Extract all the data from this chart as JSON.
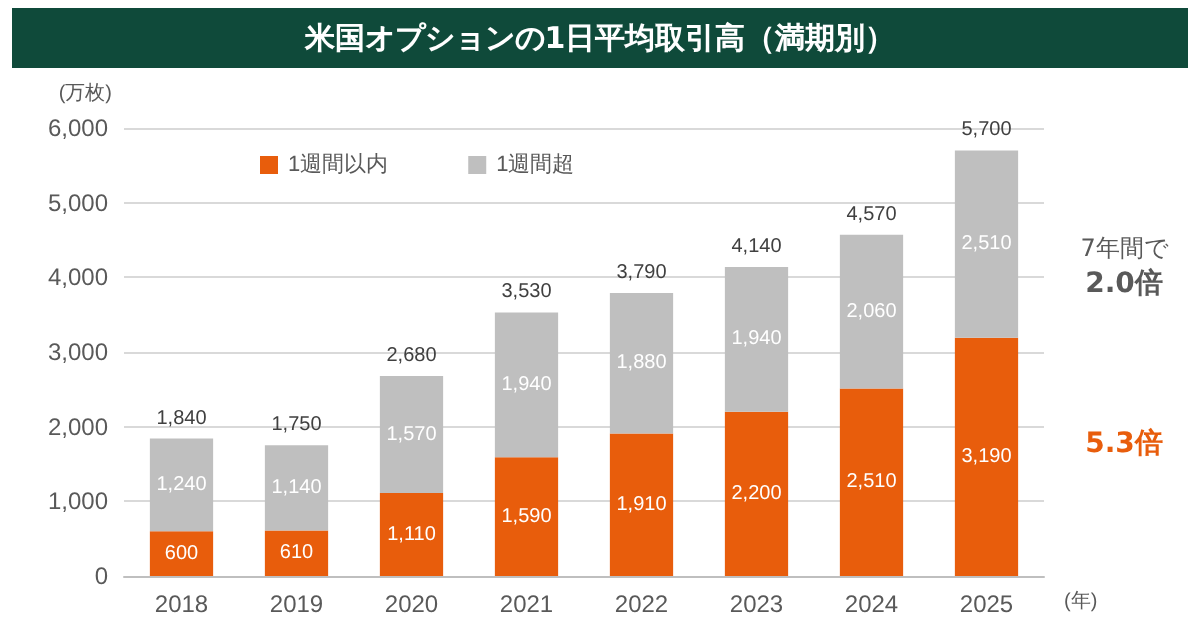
{
  "chart_data": {
    "type": "bar",
    "title": "米国オプションの1日平均取引高（満期別）",
    "ylabel": "(万枚)",
    "xlabel": "(年)",
    "categories": [
      "2018",
      "2019",
      "2020",
      "2021",
      "2022",
      "2023",
      "2024",
      "2025"
    ],
    "stacked": true,
    "series": [
      {
        "name": "1週間以内",
        "color": "#e85d0c",
        "values": [
          600,
          610,
          1110,
          1590,
          1910,
          2200,
          2510,
          3190
        ],
        "value_labels": [
          "600",
          "610",
          "1,110",
          "1,590",
          "1,910",
          "2,200",
          "2,510",
          "3,190"
        ]
      },
      {
        "name": "1週間超",
        "color": "#bfbfbf",
        "values": [
          1240,
          1140,
          1570,
          1940,
          1880,
          1940,
          2060,
          2510
        ],
        "value_labels": [
          "1,240",
          "1,140",
          "1,570",
          "1,940",
          "1,880",
          "1,940",
          "2,060",
          "2,510"
        ]
      }
    ],
    "totals": [
      "1,840",
      "1,750",
      "2,680",
      "3,530",
      "3,790",
      "4,140",
      "4,570",
      "5,700"
    ],
    "ylim": [
      0,
      6000
    ],
    "yticks": [
      {
        "value": 0,
        "label": "0"
      },
      {
        "value": 1000,
        "label": "1,000"
      },
      {
        "value": 2000,
        "label": "2,000"
      },
      {
        "value": 3000,
        "label": "3,000"
      },
      {
        "value": 4000,
        "label": "4,000"
      },
      {
        "value": 5000,
        "label": "5,000"
      },
      {
        "value": 6000,
        "label": "6,000"
      }
    ],
    "grid": "y",
    "legend": "top left",
    "annotations": [
      "7年間で",
      "2.0倍",
      "5.3倍"
    ]
  }
}
